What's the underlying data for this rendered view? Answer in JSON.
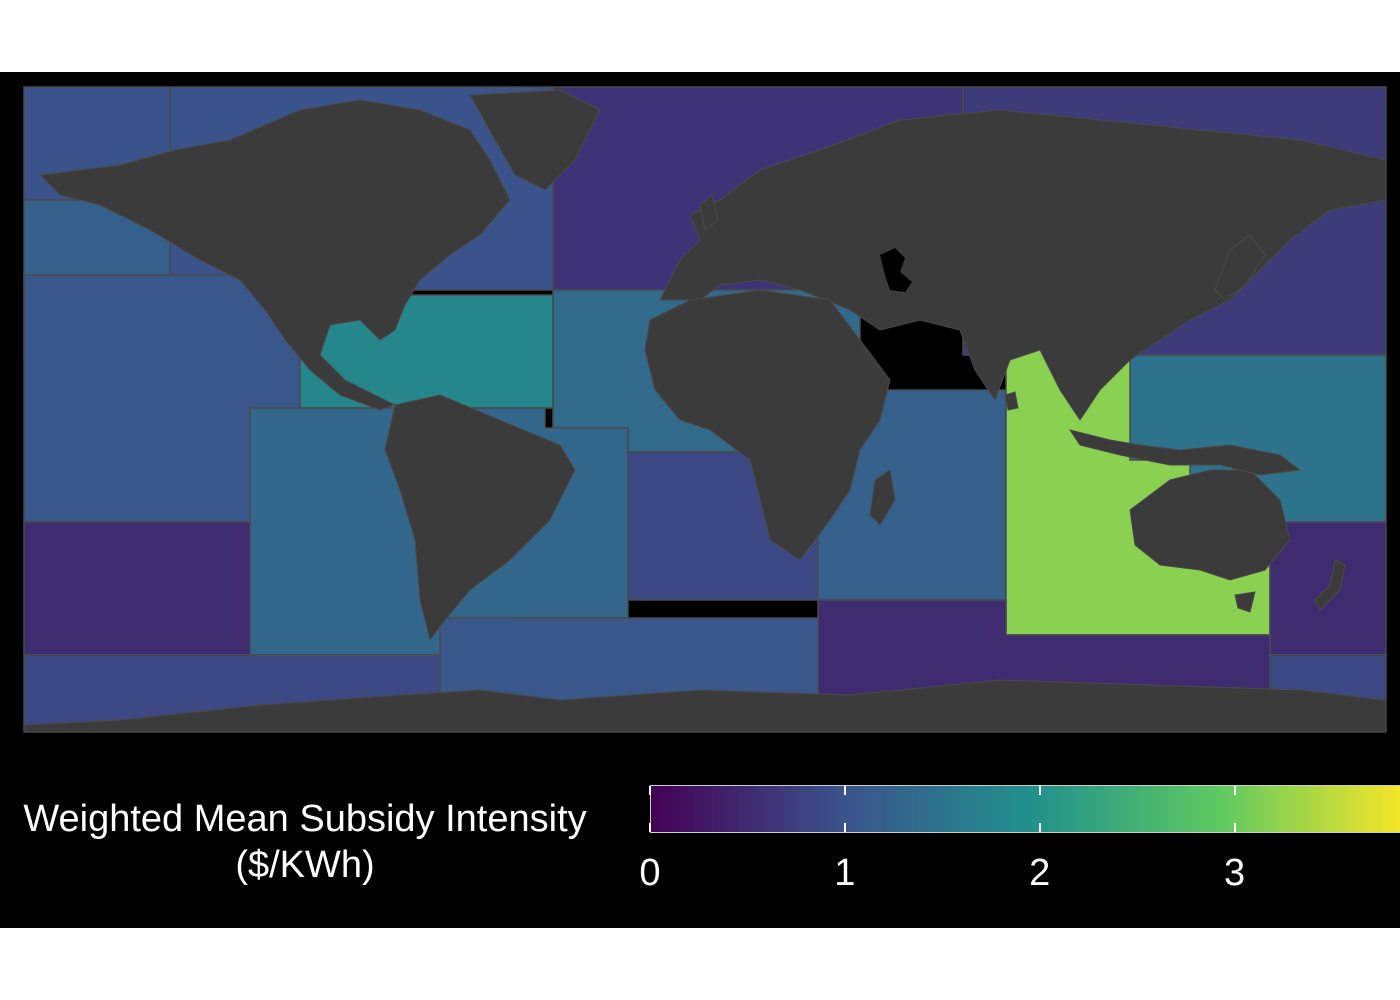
{
  "legend": {
    "title_line1": "Weighted Mean Subsidy Intensity",
    "title_line2": "($/KWh)",
    "ticks": [
      "0",
      "1",
      "2",
      "3"
    ],
    "tick_values": [
      0,
      1,
      2,
      3
    ],
    "range": [
      0,
      3.9
    ],
    "palette": [
      "#440154",
      "#3b528b",
      "#21908c",
      "#5ec962",
      "#fde725"
    ]
  },
  "map": {
    "land_color": "#3b3b3b",
    "border_color": "#4a4a4a",
    "highlight_black": "#000000"
  },
  "regions": [
    {
      "name": "north-pacific-west",
      "value": 1.0
    },
    {
      "name": "arctic-north",
      "value": 0.6
    },
    {
      "name": "north-pacific-east",
      "value": 0.7
    },
    {
      "name": "north-atlantic",
      "value": 1.0
    },
    {
      "name": "pacific-northeast",
      "value": 1.2
    },
    {
      "name": "east-central-pacific",
      "value": 1.05
    },
    {
      "name": "caribbean-gulf",
      "value": 1.8
    },
    {
      "name": "central-atlantic",
      "value": 1.35
    },
    {
      "name": "west-pacific",
      "value": 1.5
    },
    {
      "name": "south-east-pacific",
      "value": 1.3
    },
    {
      "name": "south-atlantic",
      "value": 0.85
    },
    {
      "name": "indian-ocean",
      "value": 1.2
    },
    {
      "name": "eastern-indian-australia",
      "value": 3.2
    },
    {
      "name": "south-pacific",
      "value": 0.5
    },
    {
      "name": "tasman-sea",
      "value": 0.5
    },
    {
      "name": "southern-ocean-pacific",
      "value": 0.85
    },
    {
      "name": "southern-atlantic-ocean",
      "value": 1.05
    },
    {
      "name": "southern-indian-ocean",
      "value": 0.5
    },
    {
      "name": "southern-ocean-east",
      "value": 0.85
    }
  ]
}
